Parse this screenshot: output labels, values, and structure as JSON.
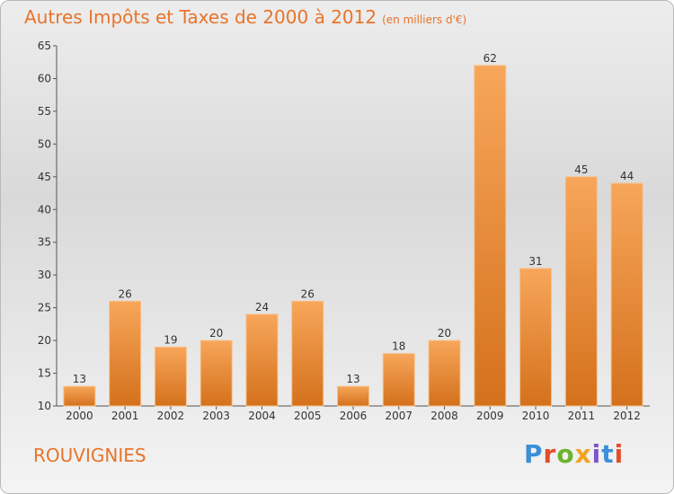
{
  "header": {
    "title": "Autres Impôts et Taxes de 2000 à 2012",
    "subtitle": "(en milliers d'€)"
  },
  "commune": "ROUVIGNIES",
  "logo": {
    "p": "P",
    "r": "r",
    "o": "o",
    "x": "x",
    "i1": "i",
    "t": "t",
    "i2": "i"
  },
  "chart_data": {
    "type": "bar",
    "title": "Autres Impôts et Taxes de 2000 à 2012",
    "subtitle": "(en milliers d'€)",
    "xlabel": "",
    "ylabel": "",
    "categories": [
      "2000",
      "2001",
      "2002",
      "2003",
      "2004",
      "2005",
      "2006",
      "2007",
      "2008",
      "2009",
      "2010",
      "2011",
      "2012"
    ],
    "values": [
      13,
      26,
      19,
      20,
      24,
      26,
      13,
      18,
      20,
      62,
      31,
      45,
      44
    ],
    "ylim": [
      10,
      65
    ],
    "yticks": [
      10,
      15,
      20,
      25,
      30,
      35,
      40,
      45,
      50,
      55,
      60,
      65
    ],
    "grid": false,
    "colors": {
      "bar_top": "#f7a65a",
      "bar_bottom": "#d4711c",
      "title": "#e8742a"
    }
  }
}
